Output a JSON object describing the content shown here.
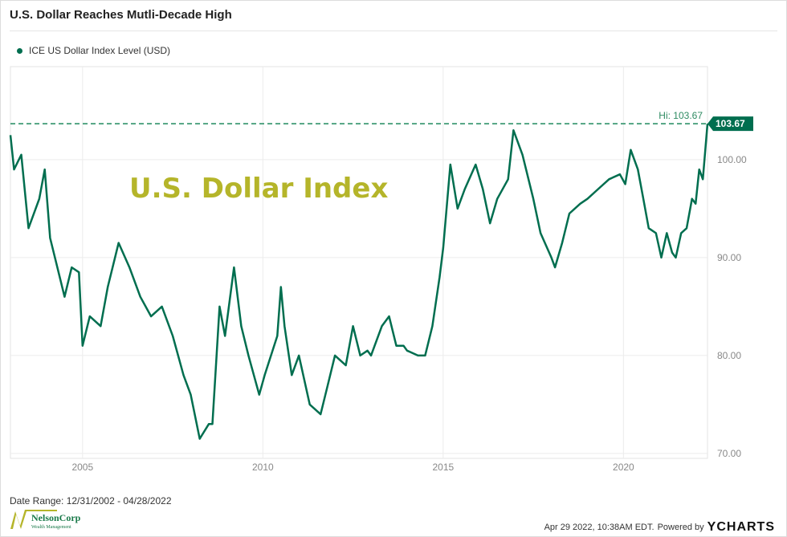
{
  "title": "U.S. Dollar Reaches Mutli-Decade High",
  "legend": {
    "label": "ICE US Dollar Index Level (USD)",
    "color": "#006e4f"
  },
  "footer": {
    "date_range": "Date Range: 12/31/2002 - 04/28/2022",
    "timestamp": "Apr 29 2022, 10:38AM EDT.",
    "powered_by": "Powered by",
    "brand": "YCHARTS",
    "logo_text": "NelsonCorp",
    "logo_subtext": "Wealth Management"
  },
  "chart_data": {
    "type": "line",
    "title": "U.S. Dollar Reaches Mutli-Decade High",
    "annotation": "U.S. Dollar Index",
    "annotation_color": "#b5b52a",
    "hi_label": "Hi: 103.67",
    "hi_value": 103.67,
    "last_value_label": "103.67",
    "xlim": [
      2003.0,
      2022.33
    ],
    "ylim": [
      69.5,
      109.5
    ],
    "x_ticks": [
      2005,
      2010,
      2015,
      2020
    ],
    "x_tick_labels": [
      "2005",
      "2010",
      "2015",
      "2020"
    ],
    "y_ticks": [
      70,
      80,
      90,
      100
    ],
    "y_tick_labels": [
      "70.00",
      "80.00",
      "90.00",
      "100.00"
    ],
    "grid": true,
    "legend_position": "top-left",
    "series": [
      {
        "name": "ICE US Dollar Index Level (USD)",
        "color": "#006e4f",
        "x": [
          2003.0,
          2003.1,
          2003.3,
          2003.5,
          2003.8,
          2003.95,
          2004.1,
          2004.3,
          2004.5,
          2004.7,
          2004.9,
          2005.0,
          2005.2,
          2005.5,
          2005.7,
          2005.9,
          2006.0,
          2006.3,
          2006.6,
          2006.9,
          2007.2,
          2007.5,
          2007.8,
          2008.0,
          2008.25,
          2008.5,
          2008.6,
          2008.8,
          2008.95,
          2009.2,
          2009.4,
          2009.6,
          2009.9,
          2010.05,
          2010.4,
          2010.5,
          2010.6,
          2010.8,
          2011.0,
          2011.3,
          2011.6,
          2011.8,
          2012.0,
          2012.3,
          2012.5,
          2012.7,
          2012.9,
          2013.0,
          2013.3,
          2013.5,
          2013.7,
          2013.9,
          2014.0,
          2014.3,
          2014.5,
          2014.7,
          2014.9,
          2015.0,
          2015.2,
          2015.4,
          2015.6,
          2015.9,
          2016.1,
          2016.3,
          2016.5,
          2016.8,
          2016.95,
          2017.2,
          2017.5,
          2017.7,
          2018.0,
          2018.1,
          2018.3,
          2018.5,
          2018.8,
          2019.0,
          2019.3,
          2019.6,
          2019.9,
          2020.05,
          2020.2,
          2020.4,
          2020.55,
          2020.7,
          2020.9,
          2021.05,
          2021.2,
          2021.35,
          2021.45,
          2021.6,
          2021.75,
          2021.9,
          2022.0,
          2022.1,
          2022.2,
          2022.33
        ],
        "y": [
          102.5,
          99,
          100.5,
          93,
          96,
          99,
          92,
          89,
          86,
          89,
          88.5,
          81,
          84,
          83,
          87,
          90,
          91.5,
          89,
          86,
          84,
          85,
          82,
          78,
          76,
          71.5,
          73,
          73,
          85,
          82,
          89,
          83,
          80,
          76,
          78,
          82,
          87,
          83,
          78,
          80,
          75,
          74,
          77,
          80,
          79,
          83,
          80,
          80.5,
          80,
          83,
          84,
          81,
          81,
          80.5,
          80,
          80,
          83,
          88,
          91,
          99.5,
          95,
          97,
          99.5,
          97,
          93.5,
          96,
          98,
          103,
          100.5,
          96,
          92.5,
          90,
          89,
          91.5,
          94.5,
          95.5,
          96,
          97,
          98,
          98.5,
          97.5,
          101,
          99,
          96,
          93,
          92.5,
          90,
          92.5,
          90.5,
          90,
          92.5,
          93,
          96,
          95.5,
          99,
          98,
          103.67
        ]
      }
    ]
  }
}
